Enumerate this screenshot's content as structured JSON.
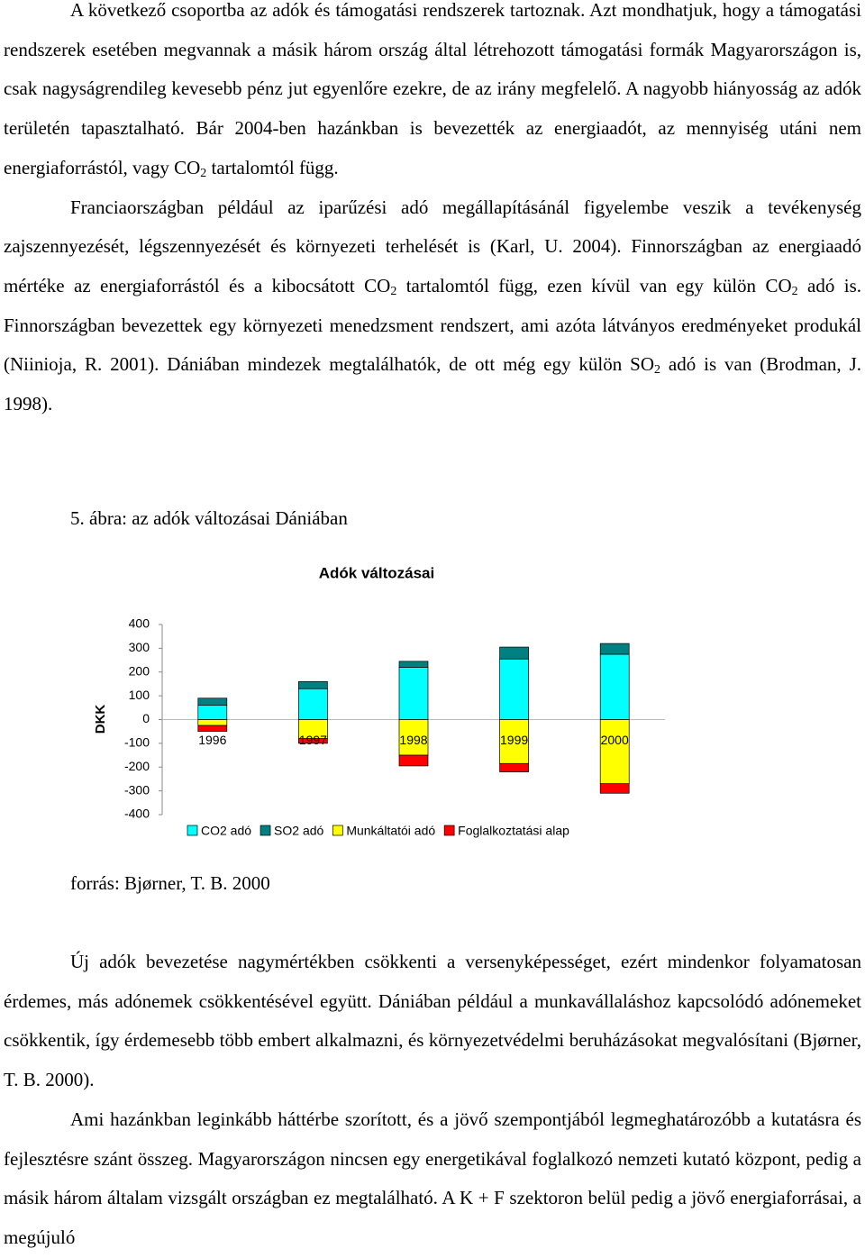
{
  "paragraphs": [
    [
      {
        "text": "A következő csoportba az adók és támogatási rendszerek tartoznak. Azt mondhatjuk, hogy a támogatási rendszerek esetében megvannak a másik három ország által létrehozott támogatási formák Magyarországon is, csak nagyságrendileg kevesebb pénz jut egyenlőre ezekre, de az irány megfelelő. A nagyobb hiányosság az adók területén tapasztalható. Bár 2004-ben hazánkban is bevezették az energiaadót, az mennyiség utáni nem energiaforrástól, vagy CO"
      },
      {
        "sub": "2"
      },
      {
        "text": " tartalomtól függ."
      }
    ],
    [
      {
        "text": "Franciaországban például az iparűzési adó megállapításánál figyelembe veszik a tevékenység zajszennyezését, légszennyezését és környezeti terhelését is (Karl, U. 2004). Finnországban az energiaadó mértéke az energiaforrástól és a kibocsátott CO"
      },
      {
        "sub": "2"
      },
      {
        "text": " tartalomtól függ, ezen kívül van egy külön CO"
      },
      {
        "sub": "2"
      },
      {
        "text": " adó is. Finnországban bevezettek egy környezeti menedzsment rendszert, ami azóta látványos eredményeket produkál (Niinioja, R. 2001). Dániában mindezek megtalálhatók, de ott még egy külön SO"
      },
      {
        "sub": "2"
      },
      {
        "text": " adó is van (Brodman, J. 1998)."
      }
    ]
  ],
  "figure_caption": "5. ábra: az adók változásai Dániában",
  "chart_data": {
    "type": "stacked-bar",
    "title": "Adók változásai",
    "y_label": "DKK",
    "categories": [
      "1996",
      "1997",
      "1998",
      "1999",
      "2000"
    ],
    "series": [
      {
        "name": "CO2 adó",
        "color": "#00ffff",
        "values": [
          60,
          130,
          220,
          255,
          275
        ]
      },
      {
        "name": "SO2 adó",
        "color": "#008080",
        "values": [
          30,
          30,
          25,
          50,
          45
        ]
      },
      {
        "name": "Munkáltatói adó",
        "color": "#ffff00",
        "values": [
          -25,
          -80,
          -150,
          -185,
          -270
        ]
      },
      {
        "name": "Foglalkoztatási alap",
        "color": "#ff0000",
        "values": [
          -25,
          -20,
          -45,
          -35,
          -40
        ]
      }
    ],
    "ylim": [
      -400,
      400
    ],
    "yticks": [
      -400,
      -300,
      -200,
      -100,
      0,
      100,
      200,
      300,
      400
    ],
    "legend": "bottom"
  },
  "source": "forrás: Bjørner, T. B. 2000",
  "paragraphs_after": [
    [
      {
        "text": "Új adók bevezetése nagymértékben csökkenti a versenyképességet, ezért mindenkor folyamatosan érdemes, más adónemek csökkentésével együtt. Dániában például a munkavállaláshoz kapcsolódó adónemeket csökkentik, így érdemesebb több embert alkalmazni, és környezetvédelmi beruházásokat megvalósítani (Bjørner, T. B. 2000)."
      }
    ],
    [
      {
        "text": "Ami hazánkban leginkább háttérbe szorított, és a jövő szempontjából legmeghatározóbb a kutatásra és fejlesztésre szánt összeg. Magyarországon nincsen egy energetikával foglalkozó nemzeti kutató központ, pedig a másik három általam vizsgált országban ez megtalálható. A K + F szektoron belül pedig a jövő energiaforrásai, a megújuló"
      }
    ]
  ]
}
